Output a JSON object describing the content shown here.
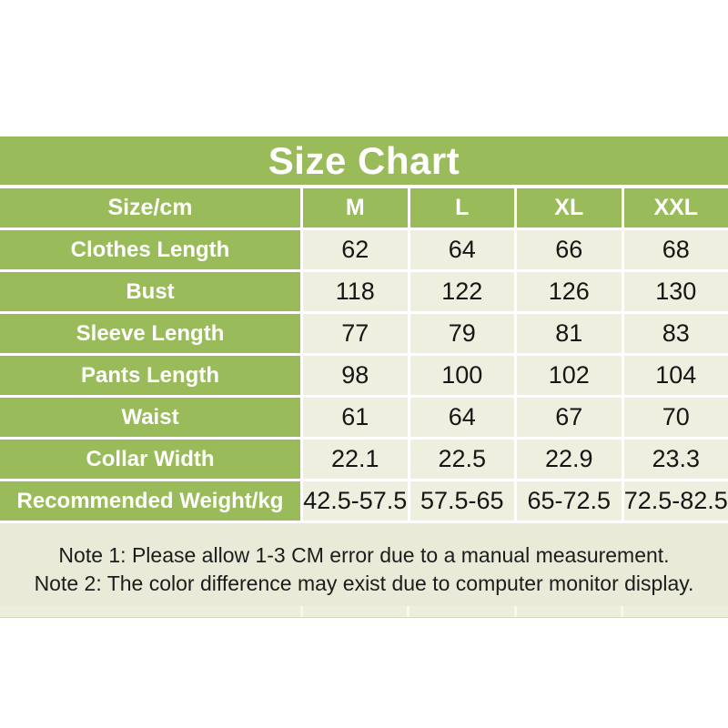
{
  "chart_data": {
    "type": "table",
    "title": "Size Chart",
    "unit_label": "Size/cm",
    "columns": [
      "M",
      "L",
      "XL",
      "XXL"
    ],
    "rows": [
      {
        "label": "Clothes Length",
        "values": [
          "62",
          "64",
          "66",
          "68"
        ]
      },
      {
        "label": "Bust",
        "values": [
          "118",
          "122",
          "126",
          "130"
        ]
      },
      {
        "label": "Sleeve Length",
        "values": [
          "77",
          "79",
          "81",
          "83"
        ]
      },
      {
        "label": "Pants Length",
        "values": [
          "98",
          "100",
          "102",
          "104"
        ]
      },
      {
        "label": "Waist",
        "values": [
          "61",
          "64",
          "67",
          "70"
        ]
      },
      {
        "label": "Collar Width",
        "values": [
          "22.1",
          "22.5",
          "22.9",
          "23.3"
        ]
      },
      {
        "label": "Recommended Weight/kg",
        "values": [
          "42.5-57.5",
          "57.5-65",
          "65-72.5",
          "72.5-82.5"
        ]
      }
    ],
    "notes": [
      "Note 1: Please allow 1-3 CM error due to a manual measurement.",
      "Note 2: The color difference may exist due to computer monitor display."
    ]
  },
  "colors": {
    "header_green": "#9ABB59",
    "cell_background": "#EEEFDE",
    "notes_background": "#E9EBD8",
    "title_text": "#FFFFFF",
    "value_text": "#161616",
    "page_background": "#FFFFFF"
  }
}
